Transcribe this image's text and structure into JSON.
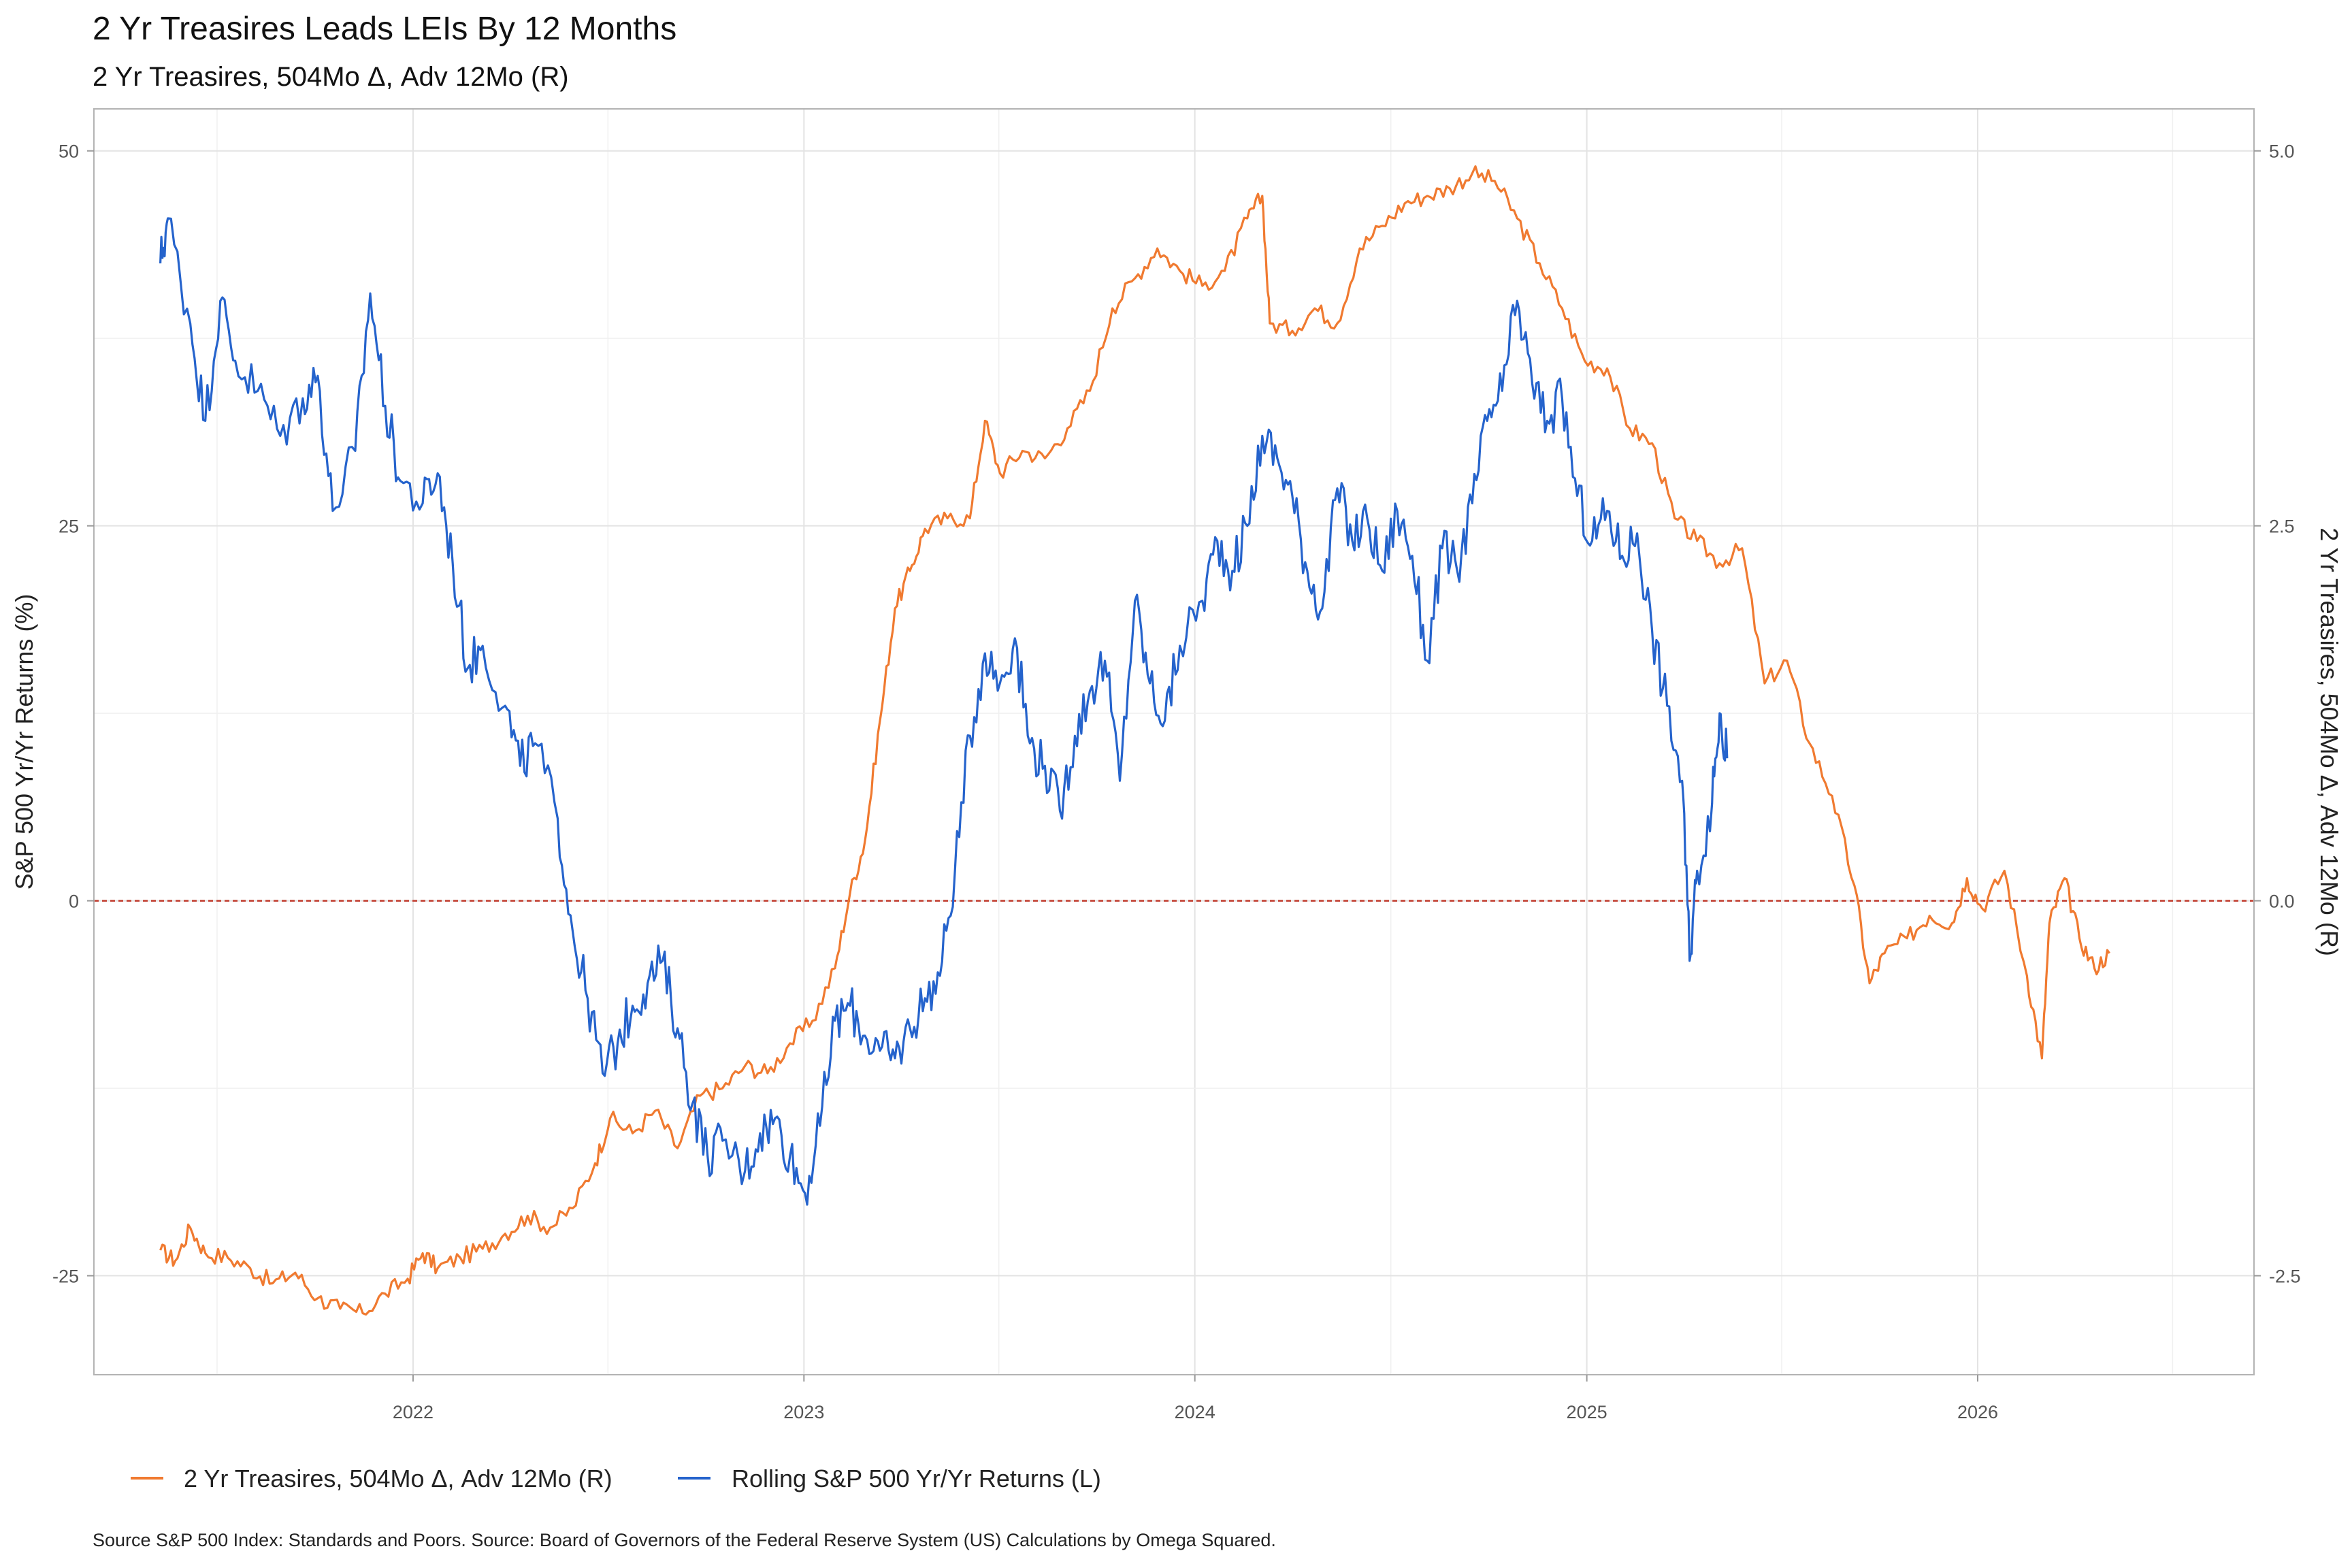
{
  "chart_data": {
    "type": "line",
    "title": "2 Yr Treasires  Leads LEIs By  12  Months",
    "subtitle": "2 Yr Treasires, 504Mo Δ, Adv 12Mo (R)",
    "ylabel_left": "S&P 500 Yr/Yr Returns (%)",
    "ylabel_right": "2 Yr Treasires, 504Mo Δ, Adv 12Mo (R)",
    "caption": "Source S&P 500 Index: Standards and Poors. Source:  Board of Governors of the Federal Reserve System (US) Calculations by Omega Squared.",
    "x_ticks": [
      "2022",
      "2023",
      "2024",
      "2025",
      "2026"
    ],
    "y_left_ticks": [
      "50",
      "25",
      "0",
      "-25"
    ],
    "y_right_ticks": [
      "5.0",
      "2.5",
      "0.0",
      "-2.5"
    ],
    "y_left_lim": [
      -31.6,
      52.8
    ],
    "y_right_lim": [
      -3.16,
      5.28
    ],
    "x_lim": [
      "2021-03-09",
      "2026-09-16"
    ],
    "zero_line_color": "#c0392b",
    "grid": true,
    "legend_position": "bottom-left",
    "series": [
      {
        "name": "2 Yr Treasires, 504Mo Δ, Adv 12Mo (R)",
        "axis": "right",
        "color": "#f07a30",
        "points": [
          [
            "2021-05-10",
            -2.33
          ],
          [
            "2021-05-24",
            -2.4
          ],
          [
            "2021-06-07",
            -2.18
          ],
          [
            "2021-06-21",
            -2.35
          ],
          [
            "2021-07-12",
            -2.38
          ],
          [
            "2021-08-02",
            -2.45
          ],
          [
            "2021-08-23",
            -2.55
          ],
          [
            "2021-09-13",
            -2.48
          ],
          [
            "2021-10-04",
            -2.65
          ],
          [
            "2021-10-25",
            -2.72
          ],
          [
            "2021-11-15",
            -2.75
          ],
          [
            "2021-12-06",
            -2.62
          ],
          [
            "2021-12-27",
            -2.52
          ],
          [
            "2022-01-10",
            -2.35
          ],
          [
            "2022-01-24",
            -2.45
          ],
          [
            "2022-02-14",
            -2.38
          ],
          [
            "2022-03-07",
            -2.32
          ],
          [
            "2022-03-28",
            -2.22
          ],
          [
            "2022-04-18",
            -2.1
          ],
          [
            "2022-05-09",
            -2.18
          ],
          [
            "2022-05-30",
            -2.05
          ],
          [
            "2022-06-20",
            -1.75
          ],
          [
            "2022-07-04",
            -1.45
          ],
          [
            "2022-07-25",
            -1.55
          ],
          [
            "2022-08-15",
            -1.4
          ],
          [
            "2022-09-05",
            -1.65
          ],
          [
            "2022-09-26",
            -1.3
          ],
          [
            "2022-10-17",
            -1.25
          ],
          [
            "2022-11-07",
            -1.1
          ],
          [
            "2022-11-28",
            -1.15
          ],
          [
            "2022-12-19",
            -0.95
          ],
          [
            "2023-01-09",
            -0.8
          ],
          [
            "2023-01-30",
            -0.45
          ],
          [
            "2023-02-13",
            0.05
          ],
          [
            "2023-02-27",
            0.4
          ],
          [
            "2023-03-13",
            1.2
          ],
          [
            "2023-03-27",
            1.95
          ],
          [
            "2023-04-10",
            2.2
          ],
          [
            "2023-04-24",
            2.48
          ],
          [
            "2023-05-15",
            2.55
          ],
          [
            "2023-06-05",
            2.55
          ],
          [
            "2023-06-19",
            3.2
          ],
          [
            "2023-07-03",
            2.85
          ],
          [
            "2023-07-24",
            3.0
          ],
          [
            "2023-08-14",
            2.95
          ],
          [
            "2023-09-04",
            3.15
          ],
          [
            "2023-09-25",
            3.4
          ],
          [
            "2023-10-16",
            3.95
          ],
          [
            "2023-11-06",
            4.15
          ],
          [
            "2023-11-27",
            4.35
          ],
          [
            "2023-12-18",
            4.2
          ],
          [
            "2024-01-08",
            4.1
          ],
          [
            "2024-01-29",
            4.2
          ],
          [
            "2024-02-19",
            4.55
          ],
          [
            "2024-03-04",
            4.7
          ],
          [
            "2024-03-11",
            3.85
          ],
          [
            "2024-04-01",
            3.8
          ],
          [
            "2024-04-22",
            3.95
          ],
          [
            "2024-05-13",
            3.85
          ],
          [
            "2024-06-03",
            4.35
          ],
          [
            "2024-06-24",
            4.5
          ],
          [
            "2024-07-15",
            4.65
          ],
          [
            "2024-08-05",
            4.7
          ],
          [
            "2024-08-26",
            4.75
          ],
          [
            "2024-09-16",
            4.85
          ],
          [
            "2024-10-07",
            4.8
          ],
          [
            "2024-10-28",
            4.55
          ],
          [
            "2024-11-18",
            4.25
          ],
          [
            "2024-12-09",
            3.95
          ],
          [
            "2024-12-30",
            3.6
          ],
          [
            "2025-01-20",
            3.55
          ],
          [
            "2025-02-10",
            3.15
          ],
          [
            "2025-03-03",
            3.05
          ],
          [
            "2025-03-24",
            2.55
          ],
          [
            "2025-04-14",
            2.4
          ],
          [
            "2025-05-05",
            2.25
          ],
          [
            "2025-05-26",
            2.35
          ],
          [
            "2025-06-16",
            1.45
          ],
          [
            "2025-07-07",
            1.6
          ],
          [
            "2025-07-28",
            1.05
          ],
          [
            "2025-08-18",
            0.7
          ],
          [
            "2025-09-08",
            0.1
          ],
          [
            "2025-09-22",
            -0.55
          ],
          [
            "2025-10-06",
            -0.35
          ],
          [
            "2025-10-27",
            -0.25
          ],
          [
            "2025-11-17",
            -0.1
          ],
          [
            "2025-12-08",
            -0.15
          ],
          [
            "2025-12-22",
            0.15
          ],
          [
            "2026-01-05",
            -0.05
          ],
          [
            "2026-01-26",
            0.2
          ],
          [
            "2026-02-16",
            -0.5
          ],
          [
            "2026-03-02",
            -1.05
          ],
          [
            "2026-03-09",
            -0.15
          ],
          [
            "2026-03-23",
            0.15
          ],
          [
            "2026-04-06",
            -0.25
          ],
          [
            "2026-04-20",
            -0.45
          ],
          [
            "2026-05-04",
            -0.35
          ]
        ]
      },
      {
        "name": "Rolling S&P 500 Yr/Yr Returns (L)",
        "axis": "left",
        "color": "#2563cc",
        "points": [
          [
            "2021-05-10",
            42.5
          ],
          [
            "2021-05-17",
            45.5
          ],
          [
            "2021-06-07",
            38.5
          ],
          [
            "2021-06-21",
            32.0
          ],
          [
            "2021-07-05",
            40.0
          ],
          [
            "2021-07-19",
            36.0
          ],
          [
            "2021-08-09",
            34.0
          ],
          [
            "2021-08-30",
            31.0
          ],
          [
            "2021-09-20",
            33.5
          ],
          [
            "2021-10-04",
            35.0
          ],
          [
            "2021-10-18",
            26.0
          ],
          [
            "2021-11-08",
            30.0
          ],
          [
            "2021-11-22",
            40.5
          ],
          [
            "2021-12-06",
            33.0
          ],
          [
            "2021-12-20",
            28.0
          ],
          [
            "2022-01-10",
            26.5
          ],
          [
            "2022-01-24",
            28.5
          ],
          [
            "2022-02-07",
            22.5
          ],
          [
            "2022-02-21",
            15.5
          ],
          [
            "2022-03-07",
            17.0
          ],
          [
            "2022-03-28",
            13.0
          ],
          [
            "2022-04-11",
            9.0
          ],
          [
            "2022-04-25",
            10.5
          ],
          [
            "2022-05-16",
            5.5
          ],
          [
            "2022-05-30",
            -2.0
          ],
          [
            "2022-06-13",
            -6.5
          ],
          [
            "2022-06-27",
            -11.5
          ],
          [
            "2022-07-11",
            -9.5
          ],
          [
            "2022-07-25",
            -7.0
          ],
          [
            "2022-08-08",
            -5.5
          ],
          [
            "2022-08-22",
            -4.0
          ],
          [
            "2022-09-05",
            -8.5
          ],
          [
            "2022-09-19",
            -13.5
          ],
          [
            "2022-10-03",
            -17.0
          ],
          [
            "2022-10-17",
            -16.0
          ],
          [
            "2022-11-07",
            -18.0
          ],
          [
            "2022-11-21",
            -15.5
          ],
          [
            "2022-12-05",
            -14.5
          ],
          [
            "2022-12-19",
            -17.0
          ],
          [
            "2023-01-02",
            -19.5
          ],
          [
            "2023-01-16",
            -15.0
          ],
          [
            "2023-01-30",
            -8.0
          ],
          [
            "2023-02-13",
            -7.0
          ],
          [
            "2023-02-27",
            -9.0
          ],
          [
            "2023-03-13",
            -10.0
          ],
          [
            "2023-03-27",
            -10.5
          ],
          [
            "2023-04-10",
            -8.5
          ],
          [
            "2023-04-24",
            -6.5
          ],
          [
            "2023-05-08",
            -5.0
          ],
          [
            "2023-05-22",
            2.0
          ],
          [
            "2023-06-05",
            11.0
          ],
          [
            "2023-06-19",
            16.5
          ],
          [
            "2023-07-03",
            14.5
          ],
          [
            "2023-07-17",
            17.5
          ],
          [
            "2023-07-31",
            10.5
          ],
          [
            "2023-08-14",
            9.0
          ],
          [
            "2023-08-28",
            6.0
          ],
          [
            "2023-09-11",
            11.0
          ],
          [
            "2023-09-25",
            14.0
          ],
          [
            "2023-10-09",
            16.0
          ],
          [
            "2023-10-23",
            8.0
          ],
          [
            "2023-11-06",
            20.0
          ],
          [
            "2023-11-20",
            14.5
          ],
          [
            "2023-12-04",
            12.0
          ],
          [
            "2023-12-18",
            17.0
          ],
          [
            "2024-01-08",
            20.0
          ],
          [
            "2024-01-22",
            24.0
          ],
          [
            "2024-02-05",
            22.0
          ],
          [
            "2024-02-19",
            25.0
          ],
          [
            "2024-03-04",
            31.0
          ],
          [
            "2024-03-18",
            29.5
          ],
          [
            "2024-04-01",
            27.0
          ],
          [
            "2024-04-15",
            22.0
          ],
          [
            "2024-04-29",
            19.5
          ],
          [
            "2024-05-13",
            27.5
          ],
          [
            "2024-05-27",
            24.0
          ],
          [
            "2024-06-10",
            25.5
          ],
          [
            "2024-06-24",
            22.0
          ],
          [
            "2024-07-08",
            26.0
          ],
          [
            "2024-07-22",
            23.0
          ],
          [
            "2024-08-05",
            16.0
          ],
          [
            "2024-08-19",
            23.5
          ],
          [
            "2024-09-02",
            22.0
          ],
          [
            "2024-09-16",
            26.5
          ],
          [
            "2024-09-30",
            32.0
          ],
          [
            "2024-10-14",
            34.0
          ],
          [
            "2024-10-28",
            40.0
          ],
          [
            "2024-11-11",
            34.5
          ],
          [
            "2024-11-25",
            32.0
          ],
          [
            "2024-12-09",
            33.5
          ],
          [
            "2024-12-23",
            27.0
          ],
          [
            "2025-01-06",
            24.0
          ],
          [
            "2025-01-20",
            26.0
          ],
          [
            "2025-02-03",
            23.0
          ],
          [
            "2025-02-17",
            24.5
          ],
          [
            "2025-03-03",
            18.0
          ],
          [
            "2025-03-17",
            13.0
          ],
          [
            "2025-03-31",
            8.0
          ],
          [
            "2025-04-07",
            -4.0
          ],
          [
            "2025-04-14",
            2.0
          ],
          [
            "2025-04-28",
            6.5
          ],
          [
            "2025-05-05",
            12.5
          ],
          [
            "2025-05-12",
            9.5
          ]
        ]
      }
    ]
  }
}
